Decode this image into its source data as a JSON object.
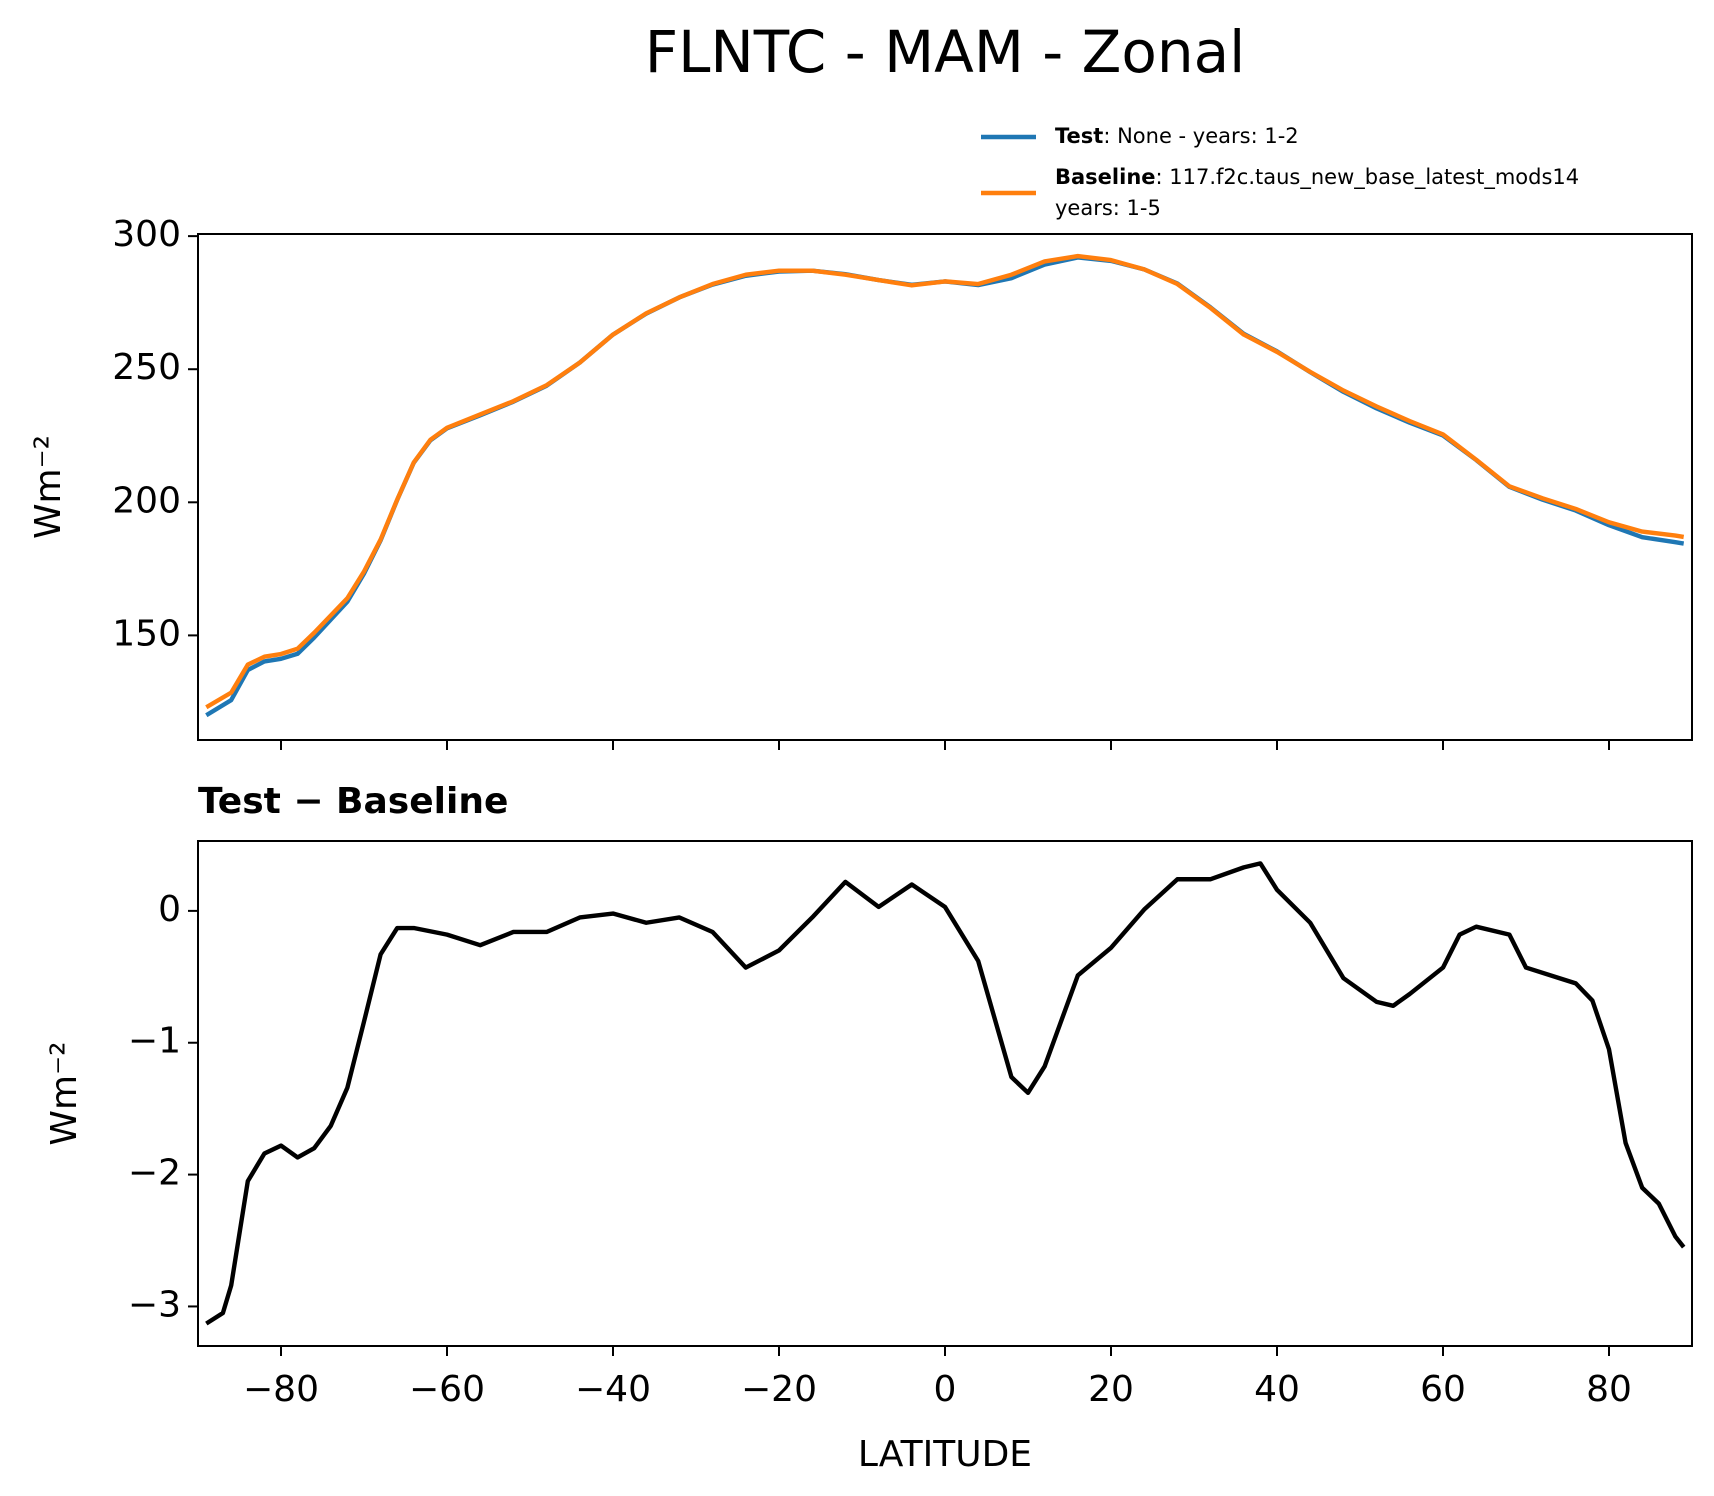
{
  "chart_data": [
    {
      "type": "line",
      "title": "FLNTC - MAM - Zonal",
      "ylabel": "Wm⁻²",
      "x": [
        -89,
        -86,
        -84,
        -82,
        -80,
        -78,
        -76,
        -72,
        -70,
        -68,
        -66,
        -64,
        -62,
        -60,
        -56,
        -52,
        -48,
        -44,
        -40,
        -36,
        -32,
        -28,
        -24,
        -20,
        -16,
        -12,
        -8,
        -4,
        0,
        4,
        8,
        12,
        16,
        20,
        24,
        28,
        32,
        36,
        40,
        44,
        48,
        52,
        56,
        60,
        64,
        68,
        72,
        76,
        80,
        84,
        88,
        89
      ],
      "series": [
        {
          "name": "Test",
          "detail": [
            ": None - years: 1-2"
          ],
          "color": "#1f77b4",
          "values": [
            120,
            125.7,
            137,
            140.2,
            141.2,
            143.1,
            149.2,
            162.7,
            173.2,
            185.7,
            200.9,
            214.9,
            223.3,
            227.8,
            232.7,
            237.8,
            243.8,
            252.5,
            263,
            270.9,
            277,
            281.8,
            285.1,
            286.7,
            287,
            285.7,
            283.5,
            281.7,
            283,
            281.6,
            284.2,
            289.3,
            292,
            290.7,
            287.5,
            282.2,
            273.2,
            263.3,
            256.7,
            248.9,
            241.5,
            235.3,
            229.9,
            225.1,
            215.9,
            205.8,
            201,
            196.9,
            191.4,
            186.9,
            185,
            184.5
          ]
        },
        {
          "name": "Baseline",
          "detail": [
            ": 117.f2c.taus_new_base_latest_mods14",
            "years: 1-5"
          ],
          "color": "#ff7f0e",
          "values": [
            123,
            128.5,
            139,
            142,
            143,
            145,
            151,
            164,
            174,
            186,
            201,
            215,
            223.5,
            228,
            233,
            238,
            244,
            252.5,
            263,
            271,
            277,
            282,
            285.5,
            287,
            287,
            285.5,
            283.5,
            281.5,
            283,
            282,
            285.5,
            290.5,
            292.5,
            291,
            287.5,
            282,
            273,
            263,
            256.5,
            249,
            242,
            236,
            230.5,
            225.5,
            216,
            206,
            201.5,
            197.5,
            192.5,
            189,
            187.5,
            187
          ]
        }
      ],
      "xlim": [
        -90,
        90
      ],
      "xticks": [
        -80,
        -60,
        -40,
        -20,
        0,
        20,
        40,
        60,
        80
      ],
      "show_xtick_labels": false,
      "ylim": [
        110.7,
        300.8
      ],
      "yticks": [
        150,
        200,
        250,
        300
      ]
    },
    {
      "type": "line",
      "title": "Test − Baseline",
      "ylabel": "Wm⁻²",
      "xlabel": "LATITUDE",
      "x": [
        -89,
        -87,
        -86,
        -84,
        -82,
        -80,
        -78,
        -76,
        -74,
        -72,
        -70,
        -68,
        -66,
        -64,
        -60,
        -56,
        -52,
        -48,
        -44,
        -40,
        -36,
        -32,
        -28,
        -24,
        -20,
        -16,
        -12,
        -8,
        -4,
        0,
        4,
        8,
        10,
        12,
        16,
        20,
        24,
        28,
        32,
        36,
        38,
        40,
        44,
        48,
        52,
        54,
        56,
        60,
        62,
        64,
        68,
        70,
        74,
        76,
        78,
        80,
        82,
        84,
        86,
        88,
        89
      ],
      "color": "#000000",
      "values": [
        -3.13,
        -3.05,
        -2.84,
        -2.05,
        -1.84,
        -1.78,
        -1.87,
        -1.8,
        -1.63,
        -1.34,
        -0.84,
        -0.33,
        -0.13,
        -0.13,
        -0.18,
        -0.26,
        -0.16,
        -0.16,
        -0.05,
        -0.02,
        -0.09,
        -0.05,
        -0.16,
        -0.43,
        -0.3,
        -0.05,
        0.22,
        0.03,
        0.2,
        0.03,
        -0.38,
        -1.26,
        -1.38,
        -1.18,
        -0.49,
        -0.28,
        0.01,
        0.24,
        0.24,
        0.33,
        0.36,
        0.16,
        -0.09,
        -0.51,
        -0.69,
        -0.72,
        -0.63,
        -0.43,
        -0.18,
        -0.12,
        -0.18,
        -0.43,
        -0.51,
        -0.55,
        -0.68,
        -1.05,
        -1.76,
        -2.1,
        -2.22,
        -2.47,
        -2.55
      ],
      "xlim": [
        -90,
        90
      ],
      "xticks": [
        {
          "value": -80,
          "label": "−80"
        },
        {
          "value": -60,
          "label": "−60"
        },
        {
          "value": -40,
          "label": "−40"
        },
        {
          "value": -20,
          "label": "−20"
        },
        0,
        20,
        40,
        60,
        80
      ],
      "show_xtick_labels": true,
      "ylim": [
        -3.3,
        0.53
      ],
      "yticks": [
        {
          "value": -3,
          "label": "−3"
        },
        {
          "value": -2,
          "label": "−2"
        },
        {
          "value": -1,
          "label": "−1"
        },
        0
      ]
    }
  ]
}
